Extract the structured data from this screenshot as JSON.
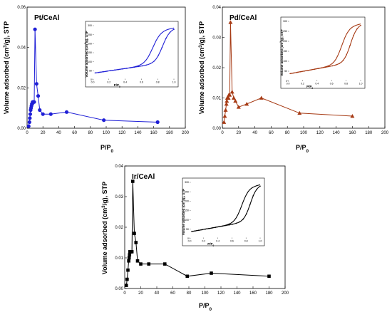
{
  "chart_data": [
    {
      "type": "line",
      "title": "Pt/CeAl",
      "xlabel": "P/P0",
      "ylabel": "Volume adsorbed (cm3/g), STP",
      "xlim": [
        0,
        200
      ],
      "ylim": [
        0,
        0.06
      ],
      "xticks": [
        0,
        20,
        40,
        60,
        80,
        100,
        120,
        140,
        160,
        180,
        200
      ],
      "yticks": [
        0.0,
        0.02,
        0.04,
        0.06
      ],
      "ytick_labels": [
        "0.00",
        "0.02",
        "0.04",
        "0.06"
      ],
      "color": "#1f1fd6",
      "marker": "circle",
      "series": [
        {
          "x": [
            2,
            3,
            3.5,
            4,
            4.5,
            5,
            5.5,
            6,
            6.5,
            7,
            7.5,
            8,
            8.5,
            9,
            10,
            12,
            14,
            16,
            20,
            30,
            50,
            97,
            165
          ],
          "y": [
            0.001,
            0.003,
            0.005,
            0.007,
            0.009,
            0.01,
            0.011,
            0.012,
            0.012,
            0.013,
            0.013,
            0.013,
            0.013,
            0.013,
            0.049,
            0.022,
            0.016,
            0.009,
            0.007,
            0.007,
            0.008,
            0.004,
            0.003
          ]
        }
      ],
      "inset": {
        "xlabel": "P/P0",
        "ylabel": "Volume adsorbed (cm3/g), STP",
        "xticks": [
          "0.0",
          "0.2",
          "0.4",
          "0.6",
          "0.8",
          "1.0"
        ],
        "yticks": [
          "0",
          "50",
          "100",
          "150",
          "200",
          "250",
          "300"
        ]
      }
    },
    {
      "type": "line",
      "title": "Pd/CeAl",
      "xlabel": "P/P0",
      "ylabel": "Volume adsorbed (cm3/g), STP",
      "xlim": [
        0,
        200
      ],
      "ylim": [
        0,
        0.04
      ],
      "xticks": [
        0,
        20,
        40,
        60,
        80,
        100,
        120,
        140,
        160,
        180,
        200
      ],
      "yticks": [
        0.0,
        0.01,
        0.02,
        0.03,
        0.04
      ],
      "ytick_labels": [
        "0.00",
        "0.01",
        "0.02",
        "0.03",
        "0.04"
      ],
      "color": "#a63a14",
      "marker": "triangle",
      "series": [
        {
          "x": [
            2,
            3,
            4,
            5,
            5.5,
            6,
            6.5,
            7,
            7.5,
            8,
            9,
            10,
            12,
            14,
            16,
            20,
            30,
            48,
            95,
            160
          ],
          "y": [
            0.002,
            0.004,
            0.006,
            0.008,
            0.009,
            0.01,
            0.01,
            0.01,
            0.01,
            0.011,
            0.011,
            0.035,
            0.012,
            0.01,
            0.009,
            0.007,
            0.008,
            0.01,
            0.005,
            0.004
          ]
        }
      ],
      "inset": {
        "xlabel": "P/P0",
        "ylabel": "Volume adsorbed (cm3/g), STP",
        "xticks": [
          "0.0",
          "0.2",
          "0.4",
          "0.6",
          "0.8",
          "1.0"
        ],
        "yticks": [
          "0",
          "50",
          "100",
          "150",
          "200",
          "250",
          "300"
        ]
      }
    },
    {
      "type": "line",
      "title": "Ir/CeAl",
      "xlabel": "P/P0",
      "ylabel": "Volume adsorbed (cm3/g), STP",
      "xlim": [
        0,
        200
      ],
      "ylim": [
        0,
        0.04
      ],
      "xticks": [
        0,
        20,
        40,
        60,
        80,
        100,
        120,
        140,
        160,
        180,
        200
      ],
      "yticks": [
        0.0,
        0.01,
        0.02,
        0.03,
        0.04
      ],
      "ytick_labels": [
        "0.00",
        "0.01",
        "0.02",
        "0.03",
        "0.04"
      ],
      "color": "#000000",
      "marker": "square",
      "series": [
        {
          "x": [
            2,
            3,
            4,
            5,
            5.5,
            6,
            6.5,
            7,
            7.5,
            8,
            9,
            10,
            12,
            14,
            16,
            20,
            30,
            50,
            78,
            108,
            180
          ],
          "y": [
            0.001,
            0.003,
            0.006,
            0.009,
            0.01,
            0.011,
            0.012,
            0.012,
            0.012,
            0.012,
            0.012,
            0.035,
            0.018,
            0.015,
            0.009,
            0.008,
            0.008,
            0.008,
            0.004,
            0.005,
            0.004
          ]
        }
      ],
      "inset": {
        "xlabel": "P/P0",
        "ylabel": "Volume adsorbed (cm3/g), STP",
        "xticks": [
          "0.0",
          "0.2",
          "0.4",
          "0.6",
          "0.8",
          "1.0"
        ],
        "yticks": [
          "0",
          "50",
          "100",
          "150",
          "200",
          "250",
          "300"
        ]
      }
    }
  ]
}
